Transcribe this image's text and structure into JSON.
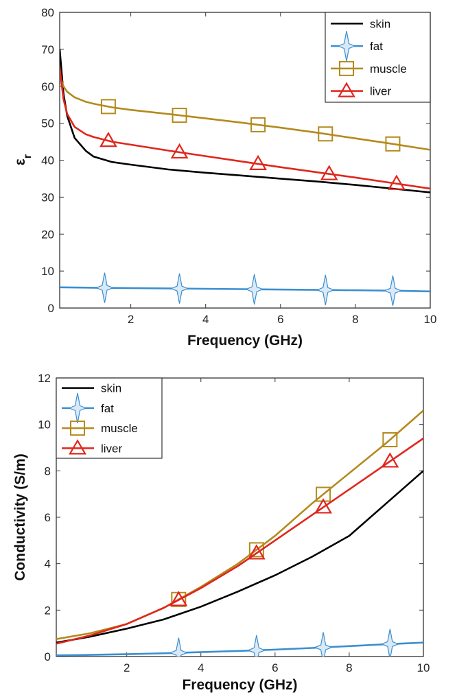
{
  "chart_data": [
    {
      "type": "line",
      "xlabel": "Frequency (GHz)",
      "ylabel_main": "ε",
      "ylabel_sub": "r",
      "xlim": [
        0.1,
        10
      ],
      "ylim": [
        0,
        80
      ],
      "xticks": [
        "2",
        "4",
        "6",
        "8",
        "10"
      ],
      "yticks": [
        "0",
        "10",
        "20",
        "30",
        "40",
        "50",
        "60",
        "70",
        "80"
      ],
      "grid": false,
      "legend_position": "top-right",
      "legend": [
        "skin",
        "fat",
        "muscle",
        "liver"
      ],
      "series": [
        {
          "name": "skin",
          "color": "#000000",
          "marker": "none",
          "x": [
            0.1,
            0.2,
            0.3,
            0.5,
            0.8,
            1,
            1.5,
            2,
            3,
            4,
            5,
            6,
            7,
            8,
            9,
            10
          ],
          "y": [
            70,
            58,
            52,
            46,
            42.5,
            41,
            39.5,
            38.8,
            37.5,
            36.6,
            35.8,
            35,
            34.2,
            33.3,
            32.3,
            31.3
          ],
          "marker_x": []
        },
        {
          "name": "fat",
          "color": "#3a8fd0",
          "marker": "star4",
          "x": [
            0.1,
            1,
            2,
            3,
            4,
            5,
            6,
            7,
            8,
            9,
            10
          ],
          "y": [
            5.6,
            5.5,
            5.4,
            5.3,
            5.2,
            5.1,
            5.0,
            4.9,
            4.8,
            4.7,
            4.5
          ],
          "marker_x": [
            1.3,
            3.3,
            5.3,
            7.2,
            9.0
          ]
        },
        {
          "name": "muscle",
          "color": "#b38a1c",
          "marker": "square",
          "x": [
            0.1,
            0.2,
            0.3,
            0.5,
            0.8,
            1,
            1.5,
            2,
            3,
            4,
            5,
            6,
            7,
            8,
            9,
            10
          ],
          "y": [
            63,
            60,
            58.5,
            57,
            55.8,
            55.3,
            54.3,
            53.6,
            52.5,
            51.3,
            50.1,
            48.8,
            47.4,
            45.9,
            44.4,
            42.8
          ],
          "marker_x": [
            1.4,
            3.3,
            5.4,
            7.2,
            9.0
          ]
        },
        {
          "name": "liver",
          "color": "#e0261c",
          "marker": "triangle",
          "x": [
            0.1,
            0.2,
            0.3,
            0.5,
            0.8,
            1,
            1.5,
            2,
            3,
            4,
            5,
            6,
            7,
            8,
            9,
            10
          ],
          "y": [
            65,
            56.5,
            52.5,
            49,
            47,
            46.3,
            45,
            44.2,
            42.6,
            41.1,
            39.6,
            38.1,
            36.7,
            35.3,
            33.8,
            32.3
          ],
          "marker_x": [
            1.4,
            3.3,
            5.4,
            7.3,
            9.1
          ]
        }
      ]
    },
    {
      "type": "line",
      "xlabel": "Frequency (GHz)",
      "ylabel_main": "Conductivity (S/m)",
      "ylabel_sub": "",
      "xlim": [
        0.1,
        10
      ],
      "ylim": [
        0,
        12
      ],
      "xticks": [
        "2",
        "4",
        "6",
        "8",
        "10"
      ],
      "yticks": [
        "0",
        "2",
        "4",
        "6",
        "8",
        "10",
        "12"
      ],
      "grid": false,
      "legend_position": "top-left",
      "legend": [
        "skin",
        "fat",
        "muscle",
        "liver"
      ],
      "series": [
        {
          "name": "skin",
          "color": "#000000",
          "marker": "none",
          "x": [
            0.1,
            1,
            2,
            3,
            4,
            5,
            6,
            7,
            8,
            9,
            10
          ],
          "y": [
            0.6,
            0.85,
            1.2,
            1.6,
            2.15,
            2.8,
            3.5,
            4.3,
            5.2,
            6.6,
            8.0
          ],
          "marker_x": []
        },
        {
          "name": "fat",
          "color": "#3a8fd0",
          "marker": "star4",
          "x": [
            0.1,
            1,
            2,
            3,
            4,
            5,
            6,
            7,
            8,
            9,
            10
          ],
          "y": [
            0.05,
            0.07,
            0.1,
            0.14,
            0.19,
            0.24,
            0.3,
            0.37,
            0.45,
            0.53,
            0.6
          ],
          "marker_x": [
            3.4,
            5.5,
            7.3,
            9.1
          ]
        },
        {
          "name": "muscle",
          "color": "#b38a1c",
          "marker": "square",
          "x": [
            0.1,
            1,
            2,
            3,
            4,
            5,
            6,
            7,
            8,
            9,
            10
          ],
          "y": [
            0.75,
            1.0,
            1.4,
            2.1,
            3.0,
            4.0,
            5.2,
            6.6,
            7.9,
            9.2,
            10.6
          ],
          "marker_x": [
            3.4,
            5.5,
            7.3,
            9.1
          ]
        },
        {
          "name": "liver",
          "color": "#e0261c",
          "marker": "triangle",
          "x": [
            0.1,
            1,
            2,
            3,
            4,
            5,
            6,
            7,
            8,
            9,
            10
          ],
          "y": [
            0.55,
            0.9,
            1.4,
            2.1,
            2.95,
            3.9,
            5.0,
            6.1,
            7.2,
            8.3,
            9.4
          ],
          "marker_x": [
            3.4,
            5.5,
            7.3,
            9.1
          ]
        }
      ]
    }
  ]
}
